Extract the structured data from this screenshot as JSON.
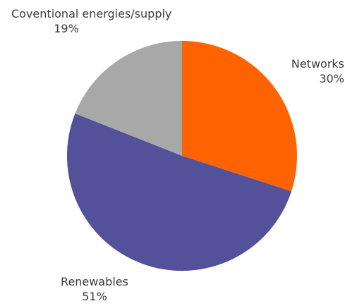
{
  "chart_data": {
    "type": "pie",
    "start_angle_deg": 0,
    "direction": "clockwise",
    "slices": [
      {
        "label": "Networks",
        "value": 30,
        "display": "30%",
        "color": "#ff6200"
      },
      {
        "label": "Renewables",
        "value": 51,
        "display": "51%",
        "color": "#525199"
      },
      {
        "label": "Coventional energies/supply",
        "value": 19,
        "display": "19%",
        "color": "#a8a8a8"
      }
    ],
    "title": "",
    "legend": "none"
  }
}
